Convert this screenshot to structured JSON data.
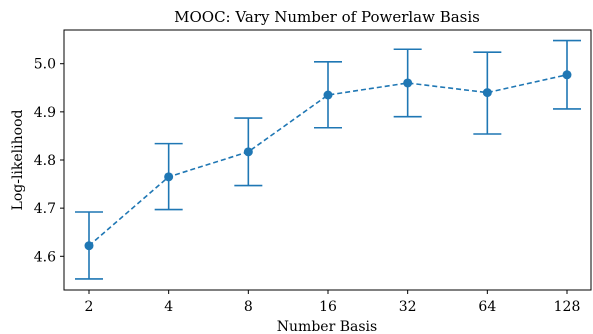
{
  "chart_data": {
    "type": "line",
    "title": "MOOC: Vary Number of Powerlaw Basis",
    "xlabel": "Number Basis",
    "ylabel": "Log-likelihood",
    "categories": [
      "2",
      "4",
      "8",
      "16",
      "32",
      "64",
      "128"
    ],
    "x_scale": "log2",
    "yticks": [
      "4.6",
      "4.7",
      "4.8",
      "4.9",
      "5.0"
    ],
    "ylim": [
      4.53,
      5.07
    ],
    "grid": false,
    "legend": "none",
    "series": [
      {
        "values": [
          4.622,
          4.765,
          4.817,
          4.935,
          4.96,
          4.94,
          4.977
        ],
        "error_low": [
          4.553,
          4.697,
          4.747,
          4.867,
          4.89,
          4.854,
          4.906
        ],
        "error_high": [
          4.692,
          4.834,
          4.887,
          5.004,
          5.03,
          5.024,
          5.048
        ],
        "line_style": "dashed",
        "marker": "circle",
        "color": "#1f77b4"
      }
    ]
  }
}
